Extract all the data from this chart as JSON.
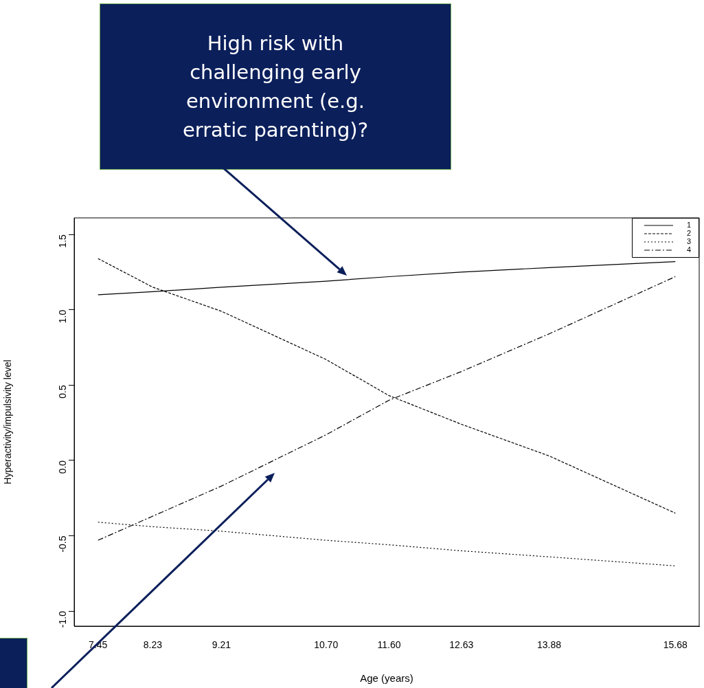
{
  "chart_data": {
    "type": "line",
    "xlabel": "Age (years)",
    "ylabel": "Hyperactivity/impulsivity level",
    "xlim": [
      7.11,
      16.02
    ],
    "ylim": [
      -1.1,
      1.61
    ],
    "xticks": [
      7.45,
      8.23,
      9.21,
      {
        "value": 10.7,
        "label": "10.70"
      },
      {
        "value": 11.6,
        "label": "11.60"
      },
      12.63,
      13.88,
      15.68
    ],
    "yticks": [
      {
        "value": -1,
        "label": "-1.0"
      },
      {
        "value": -0.5,
        "label": "-0.5"
      },
      {
        "value": 0,
        "label": "0.0"
      },
      {
        "value": 0.5,
        "label": "0.5"
      },
      {
        "value": 1,
        "label": "1.0"
      },
      {
        "value": 1.5,
        "label": "1.5"
      }
    ],
    "x": [
      7.45,
      8.23,
      9.21,
      10.7,
      11.6,
      12.63,
      13.88,
      15.68
    ],
    "series": [
      {
        "name": "1",
        "color": "#000000",
        "line_style": "solid",
        "values": [
          1.1,
          1.12,
          1.15,
          1.19,
          1.22,
          1.25,
          1.28,
          1.32
        ]
      },
      {
        "name": "2",
        "color": "#000000",
        "line_style": "dashed",
        "values": [
          1.34,
          1.15,
          0.99,
          0.67,
          0.43,
          0.24,
          0.03,
          -0.35
        ]
      },
      {
        "name": "3",
        "color": "#000000",
        "line_style": "dotted",
        "values": [
          -0.41,
          -0.44,
          -0.47,
          -0.53,
          -0.56,
          -0.6,
          -0.64,
          -0.7
        ]
      },
      {
        "name": "4",
        "color": "#000000",
        "line_style": "dashdot",
        "values": [
          -0.53,
          -0.37,
          -0.17,
          0.17,
          0.4,
          0.59,
          0.84,
          1.22
        ]
      }
    ],
    "legend": "top right",
    "grid": false,
    "marker": "none",
    "annotations": [
      "High risk with challenging early environment (e.g. erratic parenting)?"
    ]
  }
}
